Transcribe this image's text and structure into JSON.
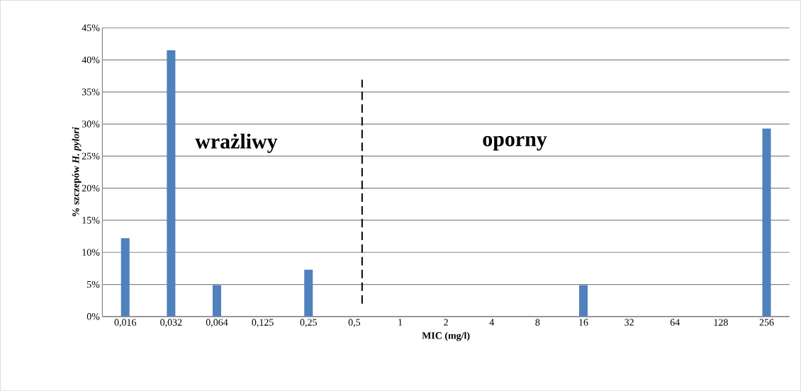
{
  "chart_data": {
    "type": "bar",
    "xlabel": "MIC (mg/l)",
    "ylabel": "% szczepów *H. pylori*",
    "categories": [
      "0,016",
      "0,032",
      "0,064",
      "0,125",
      "0,25",
      "0,5",
      "1",
      "2",
      "4",
      "8",
      "16",
      "32",
      "64",
      "128",
      "256"
    ],
    "values": [
      12.2,
      41.5,
      4.9,
      0,
      7.3,
      0,
      0,
      0,
      0,
      0,
      4.9,
      0,
      0,
      0,
      29.3
    ],
    "color": "#4f81bd",
    "ylim": [
      0,
      45
    ],
    "yticks": [
      {
        "value": 0,
        "label": "0%"
      },
      {
        "value": 5,
        "label": "5%"
      },
      {
        "value": 10,
        "label": "10%"
      },
      {
        "value": 15,
        "label": "15%"
      },
      {
        "value": 20,
        "label": "20%"
      },
      {
        "value": 25,
        "label": "25%"
      },
      {
        "value": 30,
        "label": "30%"
      },
      {
        "value": 35,
        "label": "35%"
      },
      {
        "value": 40,
        "label": "40%"
      },
      {
        "value": 45,
        "label": "45%"
      }
    ],
    "grid": "y",
    "ref_lines": [
      {
        "axis": "x",
        "value": "0,5",
        "line_style": "dashed",
        "color": "#000000"
      }
    ],
    "annotations": [
      "wrażliwy",
      "oporny"
    ]
  }
}
